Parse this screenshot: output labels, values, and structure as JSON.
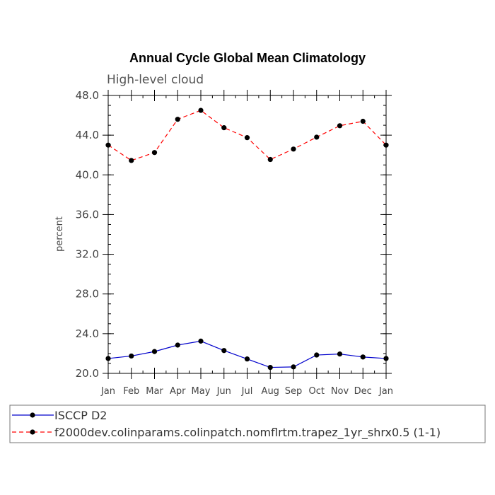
{
  "chart_data": {
    "type": "line",
    "title": "Annual Cycle Global Mean Climatology",
    "subtitle": "High-level cloud",
    "xlabel": "",
    "ylabel": "percent",
    "ylim": [
      20,
      48
    ],
    "yticks": [
      "20.0",
      "24.0",
      "28.0",
      "32.0",
      "36.0",
      "40.0",
      "44.0",
      "48.0"
    ],
    "categories": [
      "Jan",
      "Feb",
      "Mar",
      "Apr",
      "May",
      "Jun",
      "Jul",
      "Aug",
      "Sep",
      "Oct",
      "Nov",
      "Dec",
      "Jan"
    ],
    "series": [
      {
        "name": "ISCCP D2",
        "color": "#0000cc",
        "dash": "solid",
        "values": [
          21.5,
          21.75,
          22.2,
          22.85,
          23.25,
          22.3,
          21.45,
          20.6,
          20.65,
          21.85,
          21.95,
          21.65,
          21.5
        ]
      },
      {
        "name": "f2000dev.colinparams.colinpatch.nomflrtm.trapez_1yr_shrx0.5 (1-1)",
        "color": "#ff0000",
        "dash": "dashed",
        "values": [
          43.0,
          41.45,
          42.25,
          45.6,
          46.5,
          44.75,
          43.75,
          41.55,
          42.6,
          43.8,
          44.95,
          45.4,
          43.0
        ]
      }
    ],
    "legend_position": "bottom"
  }
}
